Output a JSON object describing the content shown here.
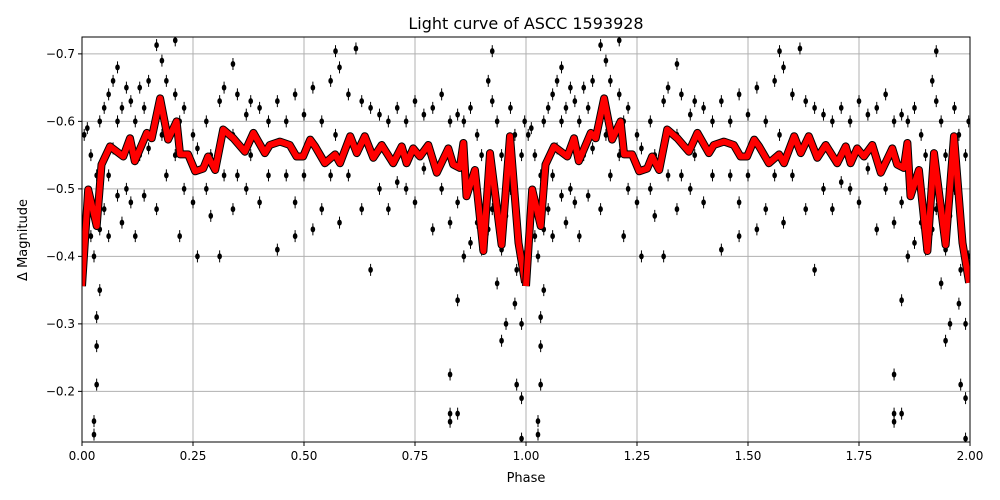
{
  "chart_data": {
    "type": "scatter",
    "title": "Light curve of ASCC 1593928",
    "xlabel": "Phase",
    "ylabel": "Δ Magnitude",
    "xlim": [
      0,
      2
    ],
    "ylim": [
      -0.725,
      -0.125
    ],
    "y_inverted": true,
    "grid": true,
    "x_ticks": [
      0,
      0.25,
      0.5,
      0.75,
      1.0,
      1.25,
      1.5,
      1.75,
      2.0
    ],
    "x_tick_labels": [
      "0.00",
      "0.25",
      "0.50",
      "0.75",
      "1.00",
      "1.25",
      "1.50",
      "1.75",
      "2.00"
    ],
    "y_ticks": [
      -0.7,
      -0.6,
      -0.5,
      -0.4,
      -0.3,
      -0.2
    ],
    "y_tick_labels": [
      "−0.7",
      "−0.6",
      "−0.5",
      "−0.4",
      "−0.3",
      "−0.2"
    ],
    "colors": {
      "points": "#000000",
      "model": "#ff0000",
      "grid": "#b0b0b0"
    },
    "repeat_period": 1,
    "points": [
      [
        0.005,
        -0.58
      ],
      [
        0.005,
        -0.42
      ],
      [
        0.012,
        -0.59
      ],
      [
        0.012,
        -0.47
      ],
      [
        0.02,
        -0.55
      ],
      [
        0.02,
        -0.43
      ],
      [
        0.027,
        -0.136
      ],
      [
        0.027,
        -0.156
      ],
      [
        0.027,
        -0.4
      ],
      [
        0.033,
        -0.267
      ],
      [
        0.033,
        -0.21
      ],
      [
        0.033,
        -0.31
      ],
      [
        0.033,
        -0.52
      ],
      [
        0.04,
        -0.35
      ],
      [
        0.04,
        -0.44
      ],
      [
        0.04,
        -0.6
      ],
      [
        0.05,
        -0.62
      ],
      [
        0.05,
        -0.47
      ],
      [
        0.06,
        -0.64
      ],
      [
        0.06,
        -0.52
      ],
      [
        0.06,
        -0.43
      ],
      [
        0.07,
        -0.66
      ],
      [
        0.07,
        -0.56
      ],
      [
        0.08,
        -0.68
      ],
      [
        0.08,
        -0.6
      ],
      [
        0.08,
        -0.49
      ],
      [
        0.09,
        -0.62
      ],
      [
        0.09,
        -0.45
      ],
      [
        0.1,
        -0.65
      ],
      [
        0.1,
        -0.5
      ],
      [
        0.11,
        -0.63
      ],
      [
        0.11,
        -0.48
      ],
      [
        0.12,
        -0.6
      ],
      [
        0.12,
        -0.43
      ],
      [
        0.13,
        -0.65
      ],
      [
        0.13,
        -0.55
      ],
      [
        0.14,
        -0.62
      ],
      [
        0.14,
        -0.49
      ],
      [
        0.15,
        -0.66
      ],
      [
        0.15,
        -0.56
      ],
      [
        0.168,
        -0.713
      ],
      [
        0.168,
        -0.6
      ],
      [
        0.168,
        -0.47
      ],
      [
        0.18,
        -0.69
      ],
      [
        0.18,
        -0.58
      ],
      [
        0.19,
        -0.66
      ],
      [
        0.19,
        -0.52
      ],
      [
        0.21,
        -0.72
      ],
      [
        0.21,
        -0.64
      ],
      [
        0.21,
        -0.55
      ],
      [
        0.22,
        -0.6
      ],
      [
        0.22,
        -0.43
      ],
      [
        0.23,
        -0.62
      ],
      [
        0.23,
        -0.5
      ],
      [
        0.25,
        -0.58
      ],
      [
        0.25,
        -0.48
      ],
      [
        0.26,
        -0.56
      ],
      [
        0.26,
        -0.4
      ],
      [
        0.28,
        -0.6
      ],
      [
        0.28,
        -0.5
      ],
      [
        0.29,
        -0.55
      ],
      [
        0.29,
        -0.46
      ],
      [
        0.31,
        -0.63
      ],
      [
        0.31,
        -0.4
      ],
      [
        0.32,
        -0.65
      ],
      [
        0.32,
        -0.52
      ],
      [
        0.34,
        -0.685
      ],
      [
        0.34,
        -0.58
      ],
      [
        0.34,
        -0.47
      ],
      [
        0.35,
        -0.64
      ],
      [
        0.35,
        -0.52
      ],
      [
        0.37,
        -0.61
      ],
      [
        0.37,
        -0.5
      ],
      [
        0.38,
        -0.63
      ],
      [
        0.38,
        -0.55
      ],
      [
        0.4,
        -0.62
      ],
      [
        0.4,
        -0.48
      ],
      [
        0.42,
        -0.6
      ],
      [
        0.42,
        -0.52
      ],
      [
        0.44,
        -0.63
      ],
      [
        0.44,
        -0.41
      ],
      [
        0.46,
        -0.6
      ],
      [
        0.46,
        -0.52
      ],
      [
        0.48,
        -0.64
      ],
      [
        0.48,
        -0.48
      ],
      [
        0.48,
        -0.43
      ],
      [
        0.5,
        -0.61
      ],
      [
        0.5,
        -0.52
      ],
      [
        0.52,
        -0.65
      ],
      [
        0.52,
        -0.44
      ],
      [
        0.54,
        -0.6
      ],
      [
        0.54,
        -0.47
      ],
      [
        0.56,
        -0.66
      ],
      [
        0.56,
        -0.52
      ],
      [
        0.571,
        -0.704
      ],
      [
        0.571,
        -0.58
      ],
      [
        0.58,
        -0.68
      ],
      [
        0.58,
        -0.45
      ],
      [
        0.6,
        -0.64
      ],
      [
        0.6,
        -0.52
      ],
      [
        0.617,
        -0.708
      ],
      [
        0.617,
        -0.56
      ],
      [
        0.63,
        -0.63
      ],
      [
        0.63,
        -0.47
      ],
      [
        0.65,
        -0.62
      ],
      [
        0.65,
        -0.38
      ],
      [
        0.67,
        -0.61
      ],
      [
        0.67,
        -0.5
      ],
      [
        0.69,
        -0.6
      ],
      [
        0.69,
        -0.47
      ],
      [
        0.71,
        -0.62
      ],
      [
        0.71,
        -0.51
      ],
      [
        0.73,
        -0.6
      ],
      [
        0.73,
        -0.5
      ],
      [
        0.75,
        -0.63
      ],
      [
        0.75,
        -0.48
      ],
      [
        0.77,
        -0.61
      ],
      [
        0.77,
        -0.53
      ],
      [
        0.79,
        -0.62
      ],
      [
        0.79,
        -0.44
      ],
      [
        0.81,
        -0.64
      ],
      [
        0.81,
        -0.5
      ],
      [
        0.829,
        -0.225
      ],
      [
        0.829,
        -0.167
      ],
      [
        0.829,
        -0.155
      ],
      [
        0.829,
        -0.6
      ],
      [
        0.829,
        -0.45
      ],
      [
        0.846,
        -0.335
      ],
      [
        0.846,
        -0.167
      ],
      [
        0.846,
        -0.61
      ],
      [
        0.846,
        -0.48
      ],
      [
        0.86,
        -0.6
      ],
      [
        0.86,
        -0.4
      ],
      [
        0.875,
        -0.62
      ],
      [
        0.875,
        -0.42
      ],
      [
        0.89,
        -0.58
      ],
      [
        0.89,
        -0.45
      ],
      [
        0.9,
        -0.55
      ],
      [
        0.9,
        -0.41
      ],
      [
        0.915,
        -0.66
      ],
      [
        0.915,
        -0.44
      ],
      [
        0.924,
        -0.704
      ],
      [
        0.924,
        -0.63
      ],
      [
        0.924,
        -0.47
      ],
      [
        0.935,
        -0.6
      ],
      [
        0.935,
        -0.36
      ],
      [
        0.945,
        -0.275
      ],
      [
        0.945,
        -0.41
      ],
      [
        0.945,
        -0.55
      ],
      [
        0.955,
        -0.3
      ],
      [
        0.955,
        -0.46
      ],
      [
        0.965,
        -0.62
      ],
      [
        0.965,
        -0.5
      ],
      [
        0.975,
        -0.58
      ],
      [
        0.975,
        -0.33
      ],
      [
        0.979,
        -0.21
      ],
      [
        0.979,
        -0.38
      ],
      [
        0.99,
        -0.19
      ],
      [
        0.99,
        -0.13
      ],
      [
        0.99,
        -0.3
      ],
      [
        0.99,
        -0.55
      ],
      [
        0.997,
        -0.6
      ],
      [
        0.997,
        -0.4
      ]
    ],
    "model_curve": [
      [
        0.0,
        -0.356
      ],
      [
        0.014,
        -0.499
      ],
      [
        0.033,
        -0.445
      ],
      [
        0.044,
        -0.536
      ],
      [
        0.063,
        -0.563
      ],
      [
        0.093,
        -0.548
      ],
      [
        0.108,
        -0.575
      ],
      [
        0.119,
        -0.541
      ],
      [
        0.146,
        -0.583
      ],
      [
        0.157,
        -0.575
      ],
      [
        0.176,
        -0.634
      ],
      [
        0.194,
        -0.573
      ],
      [
        0.213,
        -0.6
      ],
      [
        0.221,
        -0.551
      ],
      [
        0.239,
        -0.551
      ],
      [
        0.255,
        -0.526
      ],
      [
        0.273,
        -0.53
      ],
      [
        0.284,
        -0.548
      ],
      [
        0.3,
        -0.528
      ],
      [
        0.318,
        -0.588
      ],
      [
        0.341,
        -0.575
      ],
      [
        0.367,
        -0.555
      ],
      [
        0.386,
        -0.583
      ],
      [
        0.412,
        -0.553
      ],
      [
        0.423,
        -0.565
      ],
      [
        0.446,
        -0.57
      ],
      [
        0.468,
        -0.565
      ],
      [
        0.483,
        -0.548
      ],
      [
        0.498,
        -0.548
      ],
      [
        0.514,
        -0.573
      ],
      [
        0.525,
        -0.563
      ],
      [
        0.547,
        -0.538
      ],
      [
        0.57,
        -0.551
      ],
      [
        0.581,
        -0.538
      ],
      [
        0.604,
        -0.578
      ],
      [
        0.619,
        -0.553
      ],
      [
        0.637,
        -0.578
      ],
      [
        0.656,
        -0.546
      ],
      [
        0.675,
        -0.565
      ],
      [
        0.701,
        -0.538
      ],
      [
        0.72,
        -0.563
      ],
      [
        0.731,
        -0.538
      ],
      [
        0.746,
        -0.56
      ],
      [
        0.761,
        -0.548
      ],
      [
        0.78,
        -0.565
      ],
      [
        0.799,
        -0.524
      ],
      [
        0.825,
        -0.56
      ],
      [
        0.836,
        -0.536
      ],
      [
        0.851,
        -0.531
      ],
      [
        0.859,
        -0.568
      ],
      [
        0.866,
        -0.489
      ],
      [
        0.885,
        -0.528
      ],
      [
        0.904,
        -0.408
      ],
      [
        0.919,
        -0.553
      ],
      [
        0.945,
        -0.417
      ],
      [
        0.964,
        -0.578
      ],
      [
        0.983,
        -0.42
      ],
      [
        0.998,
        -0.361
      ]
    ]
  }
}
